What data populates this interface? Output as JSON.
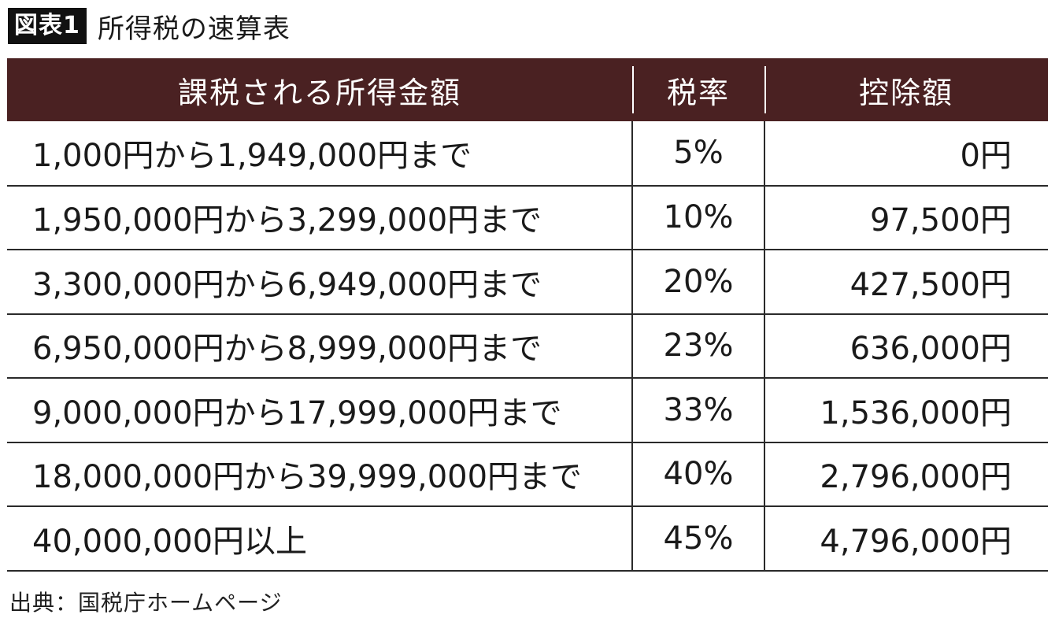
{
  "figure": {
    "label": "図表1",
    "title": "所得税の速算表"
  },
  "table": {
    "headers": [
      "課税される所得金額",
      "税率",
      "控除額"
    ],
    "rows": [
      {
        "range": "1,000円から1,949,000円まで",
        "rate": "5%",
        "deduction": "0円"
      },
      {
        "range": "1,950,000円から3,299,000円まで",
        "rate": "10%",
        "deduction": "97,500円"
      },
      {
        "range": "3,300,000円から6,949,000円まで",
        "rate": "20%",
        "deduction": "427,500円"
      },
      {
        "range": "6,950,000円から8,999,000円まで",
        "rate": "23%",
        "deduction": "636,000円"
      },
      {
        "range": "9,000,000円から17,999,000円まで",
        "rate": "33%",
        "deduction": "1,536,000円"
      },
      {
        "range": "18,000,000円から39,999,000円まで",
        "rate": "40%",
        "deduction": "2,796,000円"
      },
      {
        "range": "40,000,000円以上",
        "rate": "45%",
        "deduction": "4,796,000円"
      }
    ]
  },
  "source": "出典：国税庁ホームページ",
  "colors": {
    "header_bg": "#4a2122",
    "label_bg": "#111111"
  }
}
